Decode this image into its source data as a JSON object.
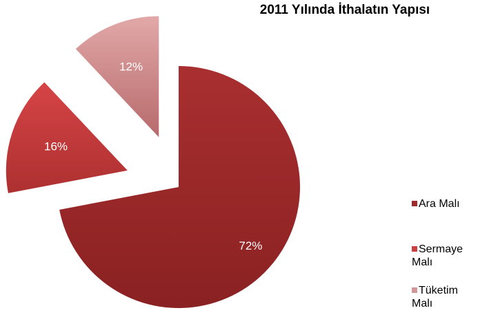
{
  "chart_data": {
    "type": "pie",
    "title": "2011 Yılında İthalatın Yapısı",
    "categories": [
      "Ara Malı",
      "Sermaye Malı",
      "Tüketim Malı"
    ],
    "values": [
      72,
      16,
      12
    ],
    "data_labels": [
      "72%",
      "16%",
      "12%"
    ],
    "legend_position": "right",
    "colors": [
      "#9e2a2b",
      "#c9403e",
      "#d49596"
    ],
    "exploded": true,
    "start_angle_deg": 0,
    "direction": "clockwise"
  }
}
